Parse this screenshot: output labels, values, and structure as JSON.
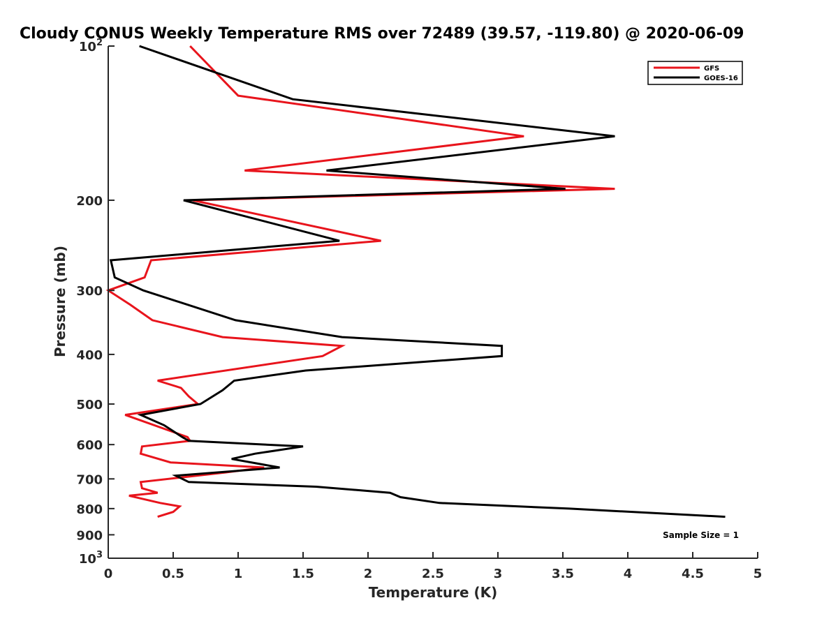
{
  "chart_data": {
    "type": "line",
    "title": "Cloudy CONUS Weekly Temperature RMS over 72489 (39.57, -119.80) @ 2020-06-09",
    "xlabel": "Temperature (K)",
    "ylabel": "Pressure (mb)",
    "xlim": [
      0,
      5
    ],
    "ylim": [
      100,
      1000
    ],
    "y_scale": "log",
    "y_reversed": true,
    "grid": false,
    "legend_position": "top-right",
    "x_ticks": [
      "0",
      "0.5",
      "1",
      "1.5",
      "2",
      "2.5",
      "3",
      "3.5",
      "4",
      "4.5",
      "5"
    ],
    "y_ticks": [
      {
        "value": 100,
        "label": "10",
        "sup": "2"
      },
      {
        "value": 200,
        "label": "200"
      },
      {
        "value": 300,
        "label": "300"
      },
      {
        "value": 400,
        "label": "400"
      },
      {
        "value": 500,
        "label": "500"
      },
      {
        "value": 600,
        "label": "600"
      },
      {
        "value": 700,
        "label": "700"
      },
      {
        "value": 800,
        "label": "800"
      },
      {
        "value": 900,
        "label": "900"
      },
      {
        "value": 1000,
        "label": "10",
        "sup": "3"
      }
    ],
    "series": [
      {
        "name": "GFS",
        "color": "#e8141c",
        "points": [
          [
            0.63,
            100
          ],
          [
            1.0,
            125
          ],
          [
            3.2,
            150
          ],
          [
            1.05,
            175
          ],
          [
            3.9,
            190
          ],
          [
            0.65,
            200
          ],
          [
            2.1,
            240
          ],
          [
            0.33,
            262
          ],
          [
            0.28,
            283
          ],
          [
            0.0,
            300
          ],
          [
            0.17,
            320
          ],
          [
            0.34,
            343
          ],
          [
            0.88,
            370
          ],
          [
            1.8,
            385
          ],
          [
            1.65,
            403
          ],
          [
            0.38,
            450
          ],
          [
            0.56,
            465
          ],
          [
            0.62,
            483
          ],
          [
            0.69,
            500
          ],
          [
            0.13,
            525
          ],
          [
            0.61,
            580
          ],
          [
            0.63,
            590
          ],
          [
            0.26,
            605
          ],
          [
            0.25,
            625
          ],
          [
            0.48,
            650
          ],
          [
            1.2,
            665
          ],
          [
            0.9,
            680
          ],
          [
            0.25,
            710
          ],
          [
            0.26,
            730
          ],
          [
            0.38,
            745
          ],
          [
            0.16,
            755
          ],
          [
            0.4,
            780
          ],
          [
            0.55,
            792
          ],
          [
            0.5,
            812
          ],
          [
            0.38,
            830
          ]
        ]
      },
      {
        "name": "GOES-16",
        "color": "#000000",
        "points": [
          [
            0.24,
            100
          ],
          [
            1.42,
            127
          ],
          [
            3.9,
            150
          ],
          [
            1.68,
            175
          ],
          [
            3.52,
            190
          ],
          [
            0.58,
            200
          ],
          [
            1.78,
            240
          ],
          [
            0.02,
            262
          ],
          [
            0.05,
            283
          ],
          [
            0.27,
            300
          ],
          [
            0.98,
            343
          ],
          [
            1.8,
            370
          ],
          [
            3.03,
            385
          ],
          [
            3.03,
            403
          ],
          [
            1.52,
            430
          ],
          [
            0.97,
            450
          ],
          [
            0.88,
            470
          ],
          [
            0.71,
            500
          ],
          [
            0.25,
            525
          ],
          [
            0.43,
            550
          ],
          [
            0.57,
            580
          ],
          [
            0.62,
            590
          ],
          [
            1.5,
            605
          ],
          [
            1.13,
            625
          ],
          [
            0.95,
            640
          ],
          [
            1.32,
            665
          ],
          [
            0.52,
            690
          ],
          [
            0.62,
            710
          ],
          [
            1.6,
            725
          ],
          [
            2.17,
            745
          ],
          [
            2.25,
            760
          ],
          [
            2.55,
            780
          ],
          [
            3.55,
            800
          ],
          [
            4.75,
            830
          ]
        ]
      }
    ],
    "annotations": [
      {
        "text": "Sample Size = 1",
        "position": "bottom-right"
      }
    ]
  }
}
